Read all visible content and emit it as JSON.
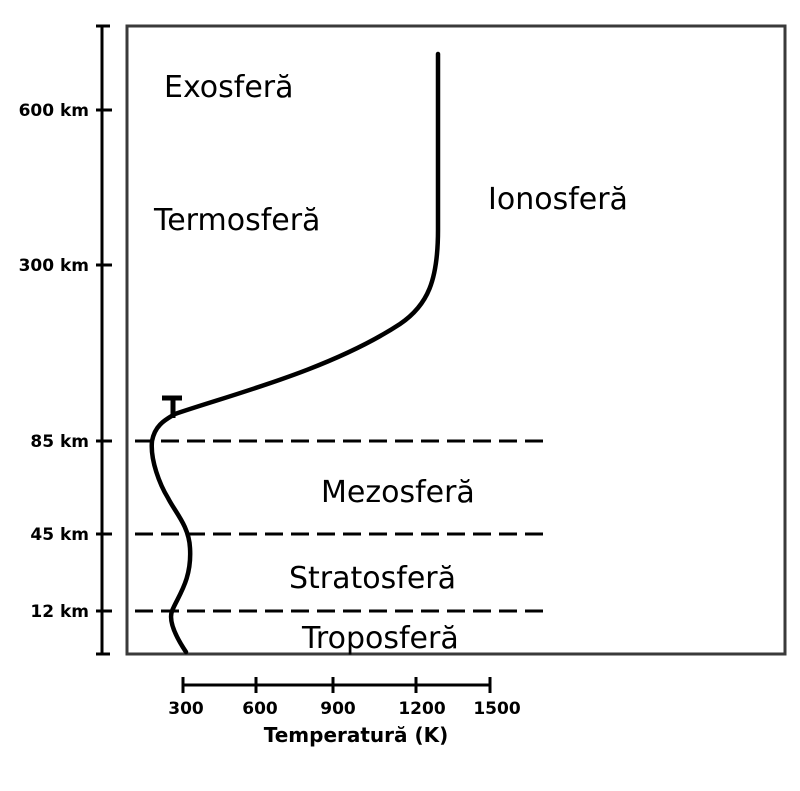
{
  "diagram": {
    "layers": {
      "exosphere": "Exosferă",
      "thermosphere": "Termosferă",
      "ionosphere": "Ionosferă",
      "mesosphere": "Mezosferă",
      "stratosphere": "Stratosferă",
      "troposphere": "Troposferă"
    },
    "altitude_ticks": [
      "600 km",
      "300 km",
      "85 km",
      "45 km",
      "12 km"
    ],
    "temperature_axis": {
      "label": "Temperatură (K)",
      "ticks": [
        "300",
        "600",
        "900",
        "1200",
        "1500"
      ]
    }
  }
}
